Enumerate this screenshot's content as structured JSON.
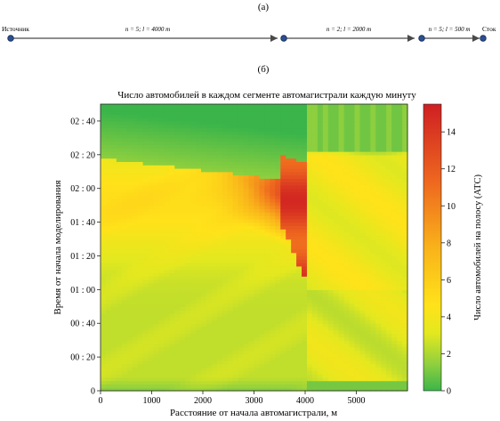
{
  "panel_a": {
    "label": "(а)",
    "source_label": "Источник",
    "sink_label": "Сток",
    "segments": [
      {
        "text": "n = 5;  l = 4000 m"
      },
      {
        "text": "n = 2;  l = 2000 m"
      },
      {
        "text": "n = 5;  l = 500 m"
      }
    ]
  },
  "panel_b": {
    "label": "(б)"
  },
  "chart_data": {
    "type": "heatmap",
    "title": "Число автомобилей в каждом сегменте автомагистрали каждую минуту",
    "xlabel": "Расстояние от начала автомагистрали, м",
    "ylabel": "Время от начала моделирования",
    "colorbar_label": "Число автомобилей на полосу (АТС)",
    "xlim": [
      0,
      6000
    ],
    "ylim_minutes": [
      0,
      170
    ],
    "x_ticks": [
      "0",
      "1000",
      "2000",
      "3000",
      "4000",
      "5000"
    ],
    "x_tick_values": [
      0,
      1000,
      2000,
      3000,
      4000,
      5000
    ],
    "y_ticks": [
      "0",
      "00 : 20",
      "00 : 40",
      "01 : 00",
      "01 : 20",
      "01 : 40",
      "02 : 00",
      "02 : 20",
      "02 : 40"
    ],
    "y_tick_values": [
      0,
      20,
      40,
      60,
      80,
      100,
      120,
      140,
      160
    ],
    "colorbar_ticks": [
      "0",
      "2",
      "4",
      "6",
      "8",
      "10",
      "12",
      "14"
    ],
    "colorbar_tick_values": [
      0,
      2,
      4,
      6,
      8,
      10,
      12,
      14
    ],
    "colorbar_range": [
      0,
      15.5
    ],
    "colormap": [
      "#3bb54a",
      "#8dcf3f",
      "#e3e81f",
      "#ffe21a",
      "#f9b21a",
      "#ef6a1f",
      "#cf1f22"
    ],
    "segment_boundaries_m": [
      4000
    ],
    "grid": false
  }
}
